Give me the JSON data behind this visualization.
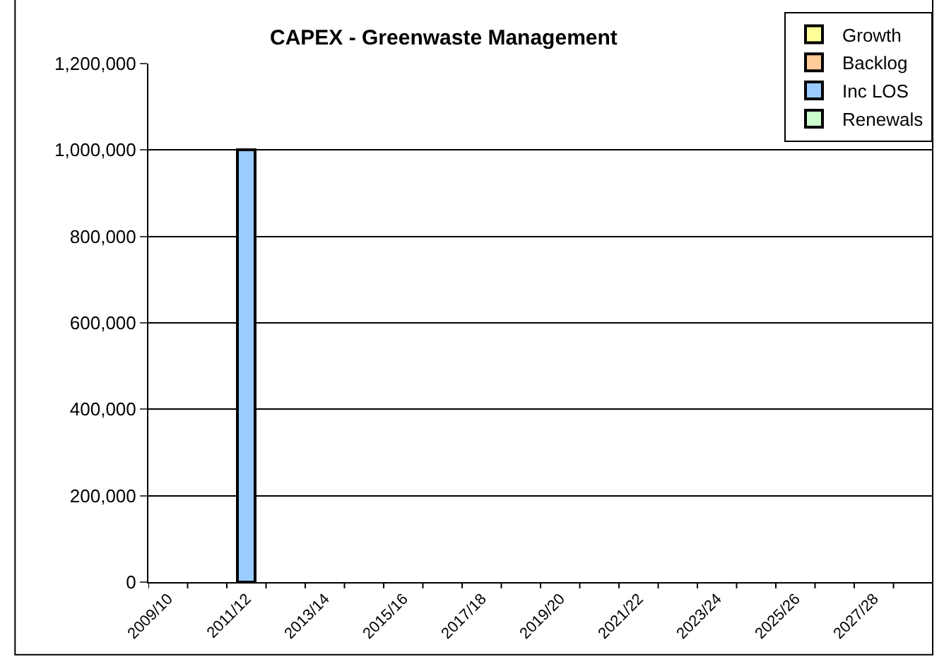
{
  "chart_data": {
    "type": "bar",
    "title": "CAPEX - Greenwaste Management",
    "stacked": true,
    "categories": [
      "2009/10",
      null,
      "2011/12",
      null,
      "2013/14",
      null,
      "2015/16",
      null,
      "2017/18",
      null,
      "2019/20",
      null,
      "2021/22",
      null,
      "2023/24",
      null,
      "2025/26",
      null,
      "2027/28",
      null
    ],
    "series": [
      {
        "name": "Growth",
        "color": "#ffff99",
        "values": [
          null,
          null,
          null,
          null,
          null,
          null,
          null,
          null,
          null,
          null,
          null,
          null,
          null,
          null,
          null,
          null,
          null,
          null,
          null,
          null
        ]
      },
      {
        "name": "Backlog",
        "color": "#ffcc99",
        "values": [
          null,
          null,
          null,
          null,
          null,
          null,
          null,
          null,
          null,
          null,
          null,
          null,
          null,
          null,
          null,
          null,
          null,
          null,
          null,
          null
        ]
      },
      {
        "name": "Inc LOS",
        "color": "#99ccff",
        "values": [
          null,
          null,
          1000000,
          null,
          null,
          null,
          null,
          null,
          null,
          null,
          null,
          null,
          null,
          null,
          null,
          null,
          null,
          null,
          null,
          null
        ]
      },
      {
        "name": "Renewals",
        "color": "#ccffcc",
        "values": [
          null,
          null,
          null,
          null,
          null,
          null,
          null,
          null,
          null,
          null,
          null,
          null,
          null,
          null,
          null,
          null,
          null,
          null,
          null,
          null
        ]
      }
    ],
    "ylim": [
      0,
      1200000
    ],
    "yticks": [
      {
        "value": 0,
        "label": "0"
      },
      {
        "value": 200000,
        "label": "200,000"
      },
      {
        "value": 400000,
        "label": "400,000"
      },
      {
        "value": 600000,
        "label": "600,000"
      },
      {
        "value": 800000,
        "label": "800,000"
      },
      {
        "value": 1000000,
        "label": "1,000,000"
      },
      {
        "value": 1200000,
        "label": "1,200,000"
      }
    ],
    "grid": "y",
    "legend": "top right"
  }
}
